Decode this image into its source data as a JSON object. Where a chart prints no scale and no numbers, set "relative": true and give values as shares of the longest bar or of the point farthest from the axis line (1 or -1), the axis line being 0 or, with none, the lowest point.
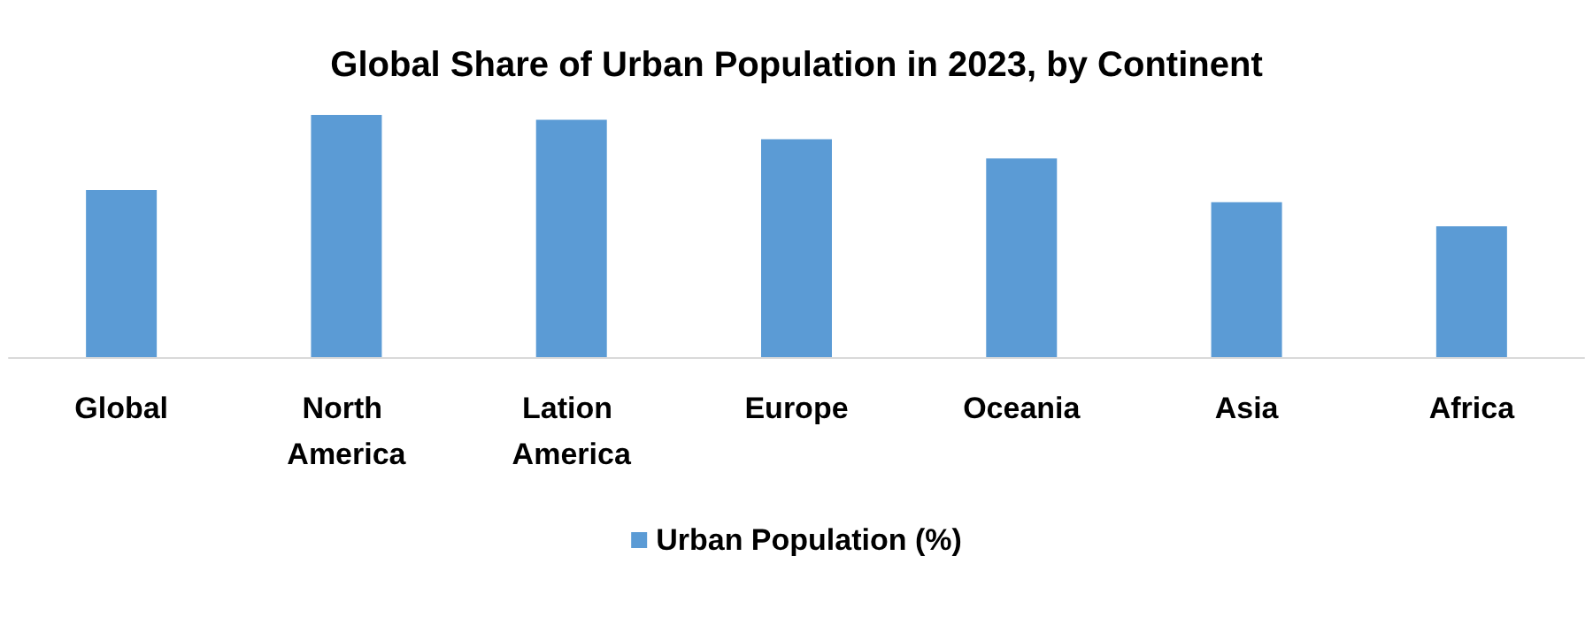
{
  "chart_data": {
    "type": "bar",
    "title": "Global Share of Urban Population in 2023, by Continent",
    "categories": [
      "Global",
      "North America",
      "Lation America",
      "Europe",
      "Oceania",
      "Asia",
      "Africa"
    ],
    "series": [
      {
        "name": "Urban Population (%)",
        "color": "#5b9bd5",
        "values": [
          0.69,
          1,
          0.98,
          0.9,
          0.82,
          0.64,
          0.54
        ]
      }
    ],
    "relative": true,
    "legend": "bottom"
  }
}
